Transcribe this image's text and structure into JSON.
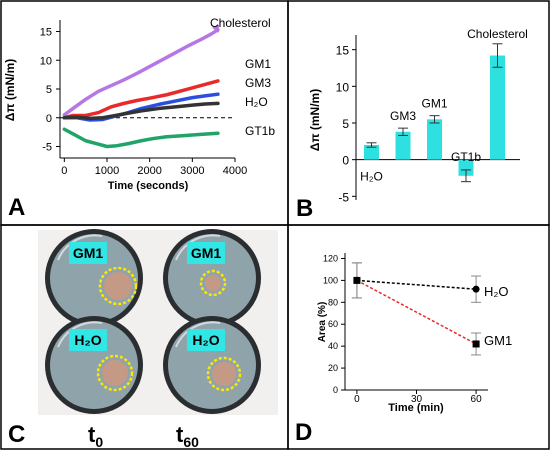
{
  "colors": {
    "border": "#000000",
    "cholesterol": "#b577e6",
    "gm1": "#e82a2a",
    "gm3": "#2a4fe0",
    "h2o": "#333333",
    "gt1b": "#22a36a",
    "bar_fill": "#2ee0e0",
    "dish_bg": "#f2f0ee",
    "dish_rim": "#2a2e30",
    "dish_water": "#8fa3ab",
    "badge": "#33e6e6",
    "ring": "#ffe600",
    "blob": "#c49a86",
    "d_h2o": "#000000",
    "d_gm1": "#e82a2a"
  },
  "panels": {
    "A": {
      "letter": "A"
    },
    "B": {
      "letter": "B"
    },
    "C": {
      "letter": "C",
      "badges": {
        "top_left": "GM1",
        "top_right": "GM1",
        "bottom_left": "H₂O",
        "bottom_right": "H₂O"
      },
      "t0_main": "t",
      "t0_sub": "0",
      "t60_main": "t",
      "t60_sub": "60"
    },
    "D": {
      "letter": "D"
    }
  },
  "chart_data": [
    {
      "type": "line",
      "panel": "A",
      "xlabel": "Time (seconds)",
      "ylabel": "Δπ (mN/m)",
      "xlim": [
        -500,
        4000
      ],
      "ylim": [
        -7,
        17
      ],
      "x_ticks": [
        0,
        1000,
        2000,
        3000,
        4000
      ],
      "y_ticks": [
        -5,
        0,
        5,
        10,
        15
      ],
      "zero_line": "dashed",
      "series": [
        {
          "name": "Cholesterol",
          "color_key": "cholesterol",
          "x": [
            0,
            200,
            500,
            800,
            1100,
            1400,
            1700,
            2000,
            2300,
            2600,
            2900,
            3200,
            3450,
            3600
          ],
          "y": [
            0.5,
            1.6,
            3.2,
            4.6,
            5.6,
            6.6,
            7.7,
            8.9,
            10.1,
            11.3,
            12.5,
            13.6,
            14.6,
            15.3
          ]
        },
        {
          "name": "GM1",
          "color_key": "gm1",
          "x": [
            0,
            200,
            500,
            800,
            1100,
            1400,
            1700,
            2000,
            2400,
            2800,
            3200,
            3600
          ],
          "y": [
            0,
            0.4,
            0.4,
            0.9,
            1.9,
            2.5,
            3.0,
            3.4,
            4.0,
            4.8,
            5.6,
            6.4
          ]
        },
        {
          "name": "GM3",
          "color_key": "gm3",
          "x": [
            0,
            300,
            600,
            900,
            1200,
            1500,
            1800,
            2200,
            2600,
            3000,
            3300,
            3600
          ],
          "y": [
            0,
            0,
            -0.4,
            -0.3,
            0.3,
            0.9,
            1.6,
            2.3,
            2.9,
            3.5,
            3.8,
            4.1
          ]
        },
        {
          "name": "H₂O",
          "color_key": "h2o",
          "x": [
            0,
            300,
            600,
            900,
            1200,
            1500,
            1800,
            2200,
            2600,
            3000,
            3300,
            3600
          ],
          "y": [
            0,
            0.1,
            -0.1,
            0,
            0.4,
            0.8,
            1.2,
            1.6,
            1.9,
            2.2,
            2.4,
            2.5
          ]
        },
        {
          "name": "GT1b",
          "color_key": "gt1b",
          "x": [
            0,
            200,
            500,
            800,
            1000,
            1200,
            1500,
            1800,
            2100,
            2400,
            2800,
            3200,
            3600
          ],
          "y": [
            -2.0,
            -2.8,
            -4.0,
            -4.6,
            -5.0,
            -4.9,
            -4.5,
            -4.0,
            -3.6,
            -3.3,
            -3.1,
            -2.9,
            -2.7
          ]
        }
      ]
    },
    {
      "type": "bar",
      "panel": "B",
      "ylabel": "Δπ (mN/m)",
      "ylim": [
        -5.5,
        17
      ],
      "y_ticks": [
        -5,
        0,
        5,
        10,
        15
      ],
      "categories": [
        "H₂O",
        "GM3",
        "GM1",
        "GT1b",
        "Cholesterol"
      ],
      "values": [
        2.0,
        3.8,
        5.5,
        -2.2,
        14.2
      ],
      "errors": [
        0.3,
        0.5,
        0.5,
        0.8,
        1.6
      ]
    },
    {
      "type": "line",
      "panel": "D",
      "xlabel": "Time (min)",
      "ylabel": "Area (%)",
      "xlim": [
        -6,
        66
      ],
      "ylim": [
        0,
        125
      ],
      "x_ticks": [
        0,
        30,
        60
      ],
      "y_ticks": [
        0,
        20,
        40,
        60,
        80,
        100,
        120
      ],
      "series": [
        {
          "name": "H₂O",
          "color_key": "d_h2o",
          "marker": "circle",
          "x": [
            0,
            60
          ],
          "y": [
            100,
            92
          ],
          "errors": [
            16,
            12
          ]
        },
        {
          "name": "GM1",
          "color_key": "d_gm1",
          "marker": "square",
          "x": [
            0,
            60
          ],
          "y": [
            100,
            42
          ],
          "errors": [
            16,
            10
          ]
        }
      ]
    }
  ]
}
